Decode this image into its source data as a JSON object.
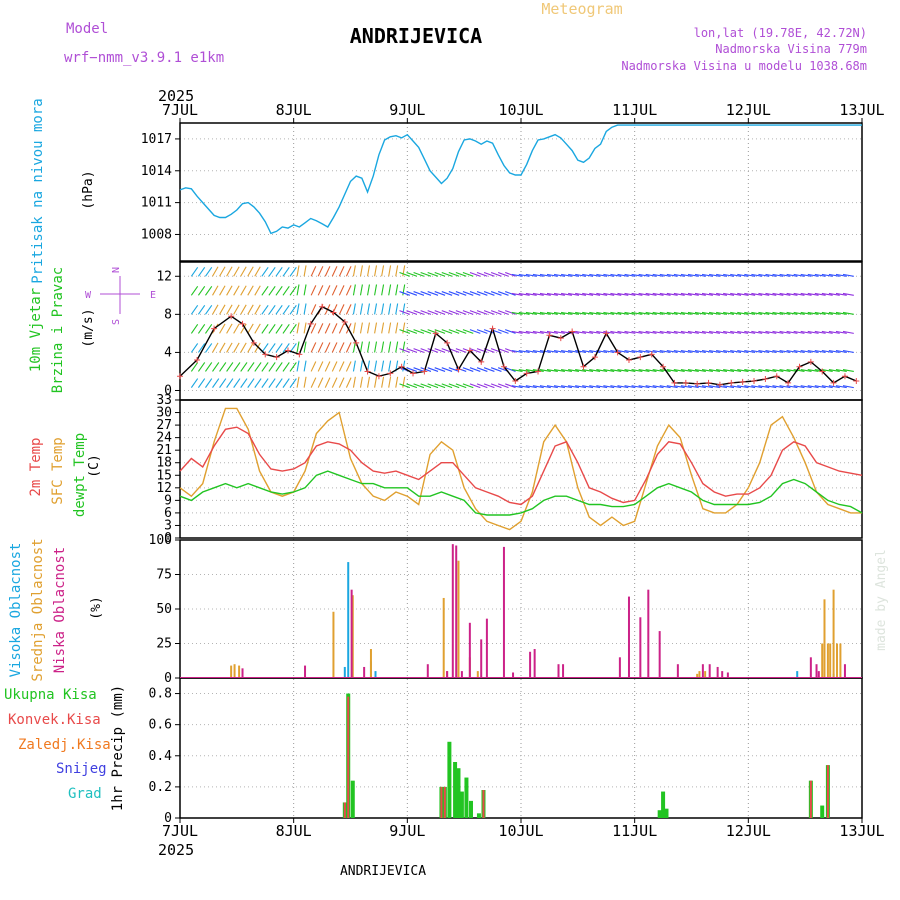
{
  "header": {
    "model_label": "Model",
    "model_name": "wrf−nmm_v3.9.1  e1km",
    "title": "ANDRIJEVICA",
    "subtitle": "Meteogram",
    "coords": "lon,lat (19.78E, 42.72N)",
    "elevation": "Nadmorska Visina 779m",
    "model_elevation": "Nadmorska Visina u modelu 1038.68m",
    "year": "2025",
    "footer_title": "ANDRIJEVICA",
    "watermark": "made by Angel"
  },
  "colors": {
    "pressure": "#1aa7e0",
    "temp2m": "#e84a4a",
    "sfc": "#e0a030",
    "dewpt": "#22c422",
    "high_cloud": "#1aa7e0",
    "mid_cloud": "#e0a030",
    "low_cloud": "#cc2288",
    "total_precip": "#22c422",
    "conv_precip": "#e84a4a",
    "frozen_precip": "#f07a20",
    "snow": "#4040e0",
    "hail": "#20c0c0",
    "wind_ylabel": "#22c422",
    "compass": "#b04fd6",
    "gust_marker": "#e84a4a"
  },
  "chart_data": [
    {
      "type": "line",
      "panel": "pressure",
      "ylabel_main": "Pritisak na nivou mora",
      "ylabel_unit": "(hPa)",
      "ylim": [
        1005.5,
        1018.5
      ],
      "yticks": [
        "1017",
        "1014",
        "1011",
        "1008"
      ],
      "x_start": "7JUL",
      "x_ticks": [
        "7JUL",
        "8JUL",
        "9JUL",
        "10JUL",
        "11JUL",
        "12JUL",
        "13JUL"
      ],
      "series": [
        {
          "x": [
            0.0,
            0.05,
            0.1,
            0.15,
            0.2,
            0.25,
            0.3,
            0.35,
            0.4,
            0.45,
            0.5,
            0.55,
            0.6,
            0.65,
            0.7,
            0.75,
            0.8,
            0.85,
            0.9,
            0.95,
            1.0,
            1.05,
            1.1,
            1.15,
            1.2,
            1.25,
            1.3,
            1.35,
            1.4,
            1.45,
            1.5,
            1.55,
            1.6,
            1.65,
            1.7,
            1.75,
            1.8,
            1.85,
            1.9,
            1.95,
            2.0,
            2.05,
            2.1,
            2.15,
            2.2,
            2.25,
            2.3,
            2.35,
            2.4,
            2.45,
            2.5,
            2.55,
            2.6,
            2.65,
            2.7,
            2.75,
            2.8,
            2.85,
            2.9,
            2.95,
            3.0,
            3.05,
            3.1,
            3.15,
            3.2,
            3.25,
            3.3,
            3.35,
            3.4,
            3.45,
            3.5,
            3.55,
            3.6,
            3.65,
            3.7,
            3.75,
            3.8,
            3.85,
            3.9,
            3.95,
            4.0,
            4.05,
            4.1,
            4.15,
            4.2,
            4.25,
            4.3,
            4.35,
            4.4,
            4.45,
            4.5,
            4.55,
            4.6,
            4.65,
            4.7,
            4.75,
            4.8,
            4.85,
            4.9,
            4.95,
            5.0,
            5.05,
            5.1,
            5.15,
            5.2,
            5.25,
            5.3,
            5.35,
            5.4,
            5.45,
            5.5,
            5.55,
            5.6,
            5.65,
            5.7,
            5.75,
            5.8,
            5.85,
            5.9,
            5.95,
            6.0
          ],
          "y": [
            1012.2,
            1012.4,
            1012.3,
            1011.6,
            1011.0,
            1010.4,
            1009.8,
            1009.6,
            1009.6,
            1009.9,
            1010.3,
            1010.9,
            1011.0,
            1010.6,
            1010.0,
            1009.2,
            1008.1,
            1008.3,
            1008.7,
            1008.6,
            1008.9,
            1008.7,
            1009.1,
            1009.5,
            1009.3,
            1009.0,
            1008.7,
            1009.6,
            1010.6,
            1011.8,
            1013.0,
            1013.5,
            1013.3,
            1012.0,
            1013.5,
            1015.5,
            1016.9,
            1017.2,
            1017.3,
            1017.1,
            1017.4,
            1016.8,
            1016.2,
            1015.1,
            1014.0,
            1013.4,
            1012.8,
            1013.3,
            1014.2,
            1015.8,
            1016.9,
            1017.0,
            1016.8,
            1016.5,
            1016.8,
            1016.6,
            1015.5,
            1014.5,
            1013.8,
            1013.6,
            1013.6,
            1014.6,
            1015.9,
            1016.9,
            1017.0,
            1017.2,
            1017.4,
            1017.1,
            1016.5,
            1015.9,
            1015.0,
            1014.8,
            1015.2,
            1016.1,
            1016.5,
            1017.7,
            1018.1,
            1018.3,
            1018.3,
            1018.3,
            1018.3,
            1018.3,
            1018.3,
            1018.3,
            1018.3,
            1018.3,
            1018.3,
            1018.3,
            1018.3,
            1018.3,
            1018.3,
            1018.3,
            1018.3,
            1018.3,
            1018.3,
            1018.3,
            1018.3,
            1018.3,
            1018.3,
            1018.3,
            1018.3,
            1018.3,
            1018.3,
            1018.3,
            1018.3,
            1018.3,
            1018.3,
            1018.3,
            1018.3,
            1018.3,
            1018.3,
            1018.3,
            1018.3,
            1018.3,
            1018.3,
            1018.3,
            1018.3,
            1018.3,
            1018.3,
            1018.3,
            1018.3
          ]
        }
      ]
    },
    {
      "type": "line",
      "panel": "wind",
      "ylabel_main": "10m Vjetar",
      "ylabel_sub": "Brzina i Pravac",
      "ylabel_unit": "(m/s)",
      "compass": {
        "n": "N",
        "s": "S",
        "w": "W",
        "e": "E"
      },
      "ylim": [
        -1,
        13.5
      ],
      "yticks": [
        "12",
        "8",
        "4",
        "0"
      ],
      "series": [
        {
          "name": "speed",
          "x": [
            0.0,
            0.15,
            0.3,
            0.45,
            0.55,
            0.65,
            0.75,
            0.85,
            0.95,
            1.05,
            1.15,
            1.25,
            1.35,
            1.45,
            1.55,
            1.65,
            1.75,
            1.85,
            1.95,
            2.05,
            2.15,
            2.25,
            2.35,
            2.45,
            2.55,
            2.65,
            2.75,
            2.85,
            2.95,
            3.05,
            3.15,
            3.25,
            3.35,
            3.45,
            3.55,
            3.65,
            3.75,
            3.85,
            3.95,
            4.05,
            4.15,
            4.25,
            4.35,
            4.45,
            4.55,
            4.65,
            4.75,
            4.85,
            4.95,
            5.05,
            5.15,
            5.25,
            5.35,
            5.45,
            5.55,
            5.65,
            5.75,
            5.85,
            5.95
          ],
          "y": [
            1.5,
            3.2,
            6.5,
            7.8,
            7.0,
            5.0,
            3.8,
            3.5,
            4.2,
            3.8,
            7.0,
            8.8,
            8.2,
            7.2,
            5.0,
            2.0,
            1.5,
            1.8,
            2.5,
            1.8,
            2.0,
            6.0,
            5.0,
            2.2,
            4.2,
            3.0,
            6.5,
            2.5,
            1.0,
            1.8,
            2.0,
            5.8,
            5.5,
            6.2,
            2.5,
            3.5,
            6.0,
            4.0,
            3.2,
            3.5,
            3.8,
            2.5,
            0.8,
            0.8,
            0.7,
            0.8,
            0.6,
            0.8,
            0.9,
            1.0,
            1.2,
            1.5,
            0.8,
            2.5,
            3.0,
            2.0,
            0.8,
            1.5,
            1.0
          ]
        }
      ]
    },
    {
      "type": "line",
      "panel": "temperature",
      "ylabel_lines": [
        "2m Temp",
        "SFC Temp",
        "dewpt Temp"
      ],
      "ylabel_unit": "(C)",
      "ylim": [
        0,
        33
      ],
      "yticks": [
        "33",
        "30",
        "27",
        "24",
        "21",
        "18",
        "15",
        "12",
        "9",
        "6",
        "3",
        "0"
      ],
      "series": [
        {
          "name": "2m Temp",
          "x": [
            0.0,
            0.1,
            0.2,
            0.3,
            0.4,
            0.5,
            0.6,
            0.7,
            0.8,
            0.9,
            1.0,
            1.1,
            1.2,
            1.3,
            1.4,
            1.5,
            1.6,
            1.7,
            1.8,
            1.9,
            2.0,
            2.1,
            2.2,
            2.3,
            2.4,
            2.5,
            2.6,
            2.7,
            2.8,
            2.9,
            3.0,
            3.1,
            3.2,
            3.3,
            3.4,
            3.5,
            3.6,
            3.7,
            3.8,
            3.9,
            4.0,
            4.1,
            4.2,
            4.3,
            4.4,
            4.5,
            4.6,
            4.7,
            4.8,
            4.9,
            5.0,
            5.1,
            5.2,
            5.3,
            5.4,
            5.5,
            5.6,
            5.7,
            5.8,
            5.9,
            6.0
          ],
          "y": [
            16,
            19,
            17,
            22,
            26,
            26.5,
            25,
            20,
            16.5,
            16,
            16.5,
            18,
            22,
            23,
            22.5,
            21,
            18,
            16,
            15.5,
            16,
            15,
            14,
            16,
            18,
            18,
            15,
            12,
            11,
            10,
            8.5,
            8,
            10,
            16,
            22,
            23,
            18,
            12,
            11,
            9.5,
            8.5,
            9,
            14,
            20,
            23,
            22.5,
            18,
            13,
            11,
            10,
            10.5,
            10.5,
            12,
            15,
            21,
            23,
            22,
            18,
            17,
            16,
            15.5,
            15
          ]
        },
        {
          "name": "SFC Temp",
          "x": [
            0.0,
            0.1,
            0.2,
            0.3,
            0.4,
            0.5,
            0.6,
            0.7,
            0.8,
            0.9,
            1.0,
            1.1,
            1.2,
            1.3,
            1.4,
            1.5,
            1.6,
            1.7,
            1.8,
            1.9,
            2.0,
            2.1,
            2.2,
            2.3,
            2.4,
            2.5,
            2.6,
            2.7,
            2.8,
            2.9,
            3.0,
            3.1,
            3.2,
            3.3,
            3.4,
            3.5,
            3.6,
            3.7,
            3.8,
            3.9,
            4.0,
            4.1,
            4.2,
            4.3,
            4.4,
            4.5,
            4.6,
            4.7,
            4.8,
            4.9,
            5.0,
            5.1,
            5.2,
            5.3,
            5.4,
            5.5,
            5.6,
            5.7,
            5.8,
            5.9,
            6.0
          ],
          "y": [
            12,
            10,
            13,
            23,
            31,
            31,
            26,
            16,
            11,
            10,
            11,
            16,
            25,
            28,
            30,
            19,
            13,
            10,
            9,
            11,
            10,
            8,
            20,
            23,
            21,
            12,
            7,
            4,
            3,
            2,
            4,
            11,
            23,
            27,
            23,
            12,
            5,
            3,
            5,
            3,
            4,
            13,
            22,
            27,
            24,
            15,
            7,
            6,
            6,
            8,
            12,
            18,
            27,
            29,
            24,
            18,
            11,
            8,
            7,
            6,
            6
          ]
        },
        {
          "name": "dewpt Temp",
          "x": [
            0.0,
            0.1,
            0.2,
            0.3,
            0.4,
            0.5,
            0.6,
            0.7,
            0.8,
            0.9,
            1.0,
            1.1,
            1.2,
            1.3,
            1.4,
            1.5,
            1.6,
            1.7,
            1.8,
            1.9,
            2.0,
            2.1,
            2.2,
            2.3,
            2.4,
            2.5,
            2.6,
            2.7,
            2.8,
            2.9,
            3.0,
            3.1,
            3.2,
            3.3,
            3.4,
            3.5,
            3.6,
            3.7,
            3.8,
            3.9,
            4.0,
            4.1,
            4.2,
            4.3,
            4.4,
            4.5,
            4.6,
            4.7,
            4.8,
            4.9,
            5.0,
            5.1,
            5.2,
            5.3,
            5.4,
            5.5,
            5.6,
            5.7,
            5.8,
            5.9,
            6.0
          ],
          "y": [
            10,
            9,
            11,
            12,
            13,
            12,
            13,
            12,
            11,
            10.5,
            11,
            12,
            15,
            16,
            15,
            14,
            13,
            13,
            12,
            12,
            12,
            10,
            10,
            11,
            10,
            9,
            6,
            5.5,
            5.5,
            5.5,
            6,
            7,
            9,
            10,
            10,
            9,
            8,
            8,
            7.5,
            7.5,
            8,
            10,
            12,
            13,
            12,
            11,
            9,
            8,
            8,
            8,
            8,
            8.5,
            10,
            13,
            14,
            13,
            11,
            9,
            8,
            7.5,
            6
          ]
        }
      ]
    },
    {
      "type": "bar",
      "panel": "clouds",
      "ylabel_lines": [
        "Visoka Oblacnost",
        "Srednja Oblacnost",
        "Niska Oblacnost"
      ],
      "ylabel_unit": "(%)",
      "ylim": [
        0,
        100
      ],
      "yticks": [
        "100",
        "75",
        "50",
        "25",
        "0"
      ],
      "series": [
        {
          "name": "Visoka Oblacnost",
          "x": [
            1.45,
            1.48,
            1.68,
            1.72,
            5.43,
            5.75
          ],
          "y": [
            8,
            84,
            12,
            5,
            5,
            3
          ]
        },
        {
          "name": "Srednja Oblacnost",
          "x": [
            0.45,
            0.48,
            0.52,
            1.35,
            1.52,
            1.68,
            2.32,
            2.35,
            2.45,
            2.55,
            2.62,
            4.55,
            4.57,
            4.62,
            5.65,
            5.67,
            5.7,
            5.72,
            5.75,
            5.78,
            5.81
          ],
          "y": [
            9,
            10,
            9,
            48,
            60,
            21,
            58,
            5,
            85,
            15,
            5,
            3,
            5,
            5,
            25,
            57,
            25,
            25,
            64,
            25,
            25
          ]
        },
        {
          "name": "Niska Oblacnost",
          "x": [
            0.55,
            1.1,
            1.51,
            1.62,
            2.18,
            2.35,
            2.4,
            2.43,
            2.48,
            2.55,
            2.65,
            2.7,
            2.85,
            2.93,
            3.08,
            3.12,
            3.33,
            3.37,
            3.87,
            3.95,
            4.05,
            4.12,
            4.22,
            4.38,
            4.6,
            4.66,
            4.73,
            4.77,
            4.82,
            5.55,
            5.6,
            5.62,
            5.85
          ],
          "y": [
            7,
            9,
            64,
            8,
            10,
            5,
            97,
            96,
            5,
            40,
            28,
            43,
            95,
            4,
            19,
            21,
            10,
            10,
            15,
            59,
            44,
            64,
            34,
            10,
            10,
            10,
            8,
            5,
            4,
            15,
            10,
            5,
            10
          ]
        }
      ]
    },
    {
      "type": "bar",
      "panel": "precip",
      "ylabel_main": "1hr Precip (mm)",
      "legend": [
        "Ukupna Kisa",
        "Konvek.Kisa",
        "Zaledj.Kisa",
        "Snijeg",
        "Grad"
      ],
      "ylim": [
        0,
        0.9
      ],
      "yticks": [
        "0.8",
        "0.6",
        "0.4",
        "0.2",
        "0"
      ],
      "series": [
        {
          "name": "Ukupna Kisa",
          "x": [
            1.45,
            1.48,
            1.52,
            2.3,
            2.33,
            2.37,
            2.42,
            2.45,
            2.48,
            2.52,
            2.56,
            2.63,
            2.67,
            4.22,
            4.25,
            4.28,
            5.55,
            5.65,
            5.7
          ],
          "y": [
            0.1,
            0.8,
            0.24,
            0.2,
            0.2,
            0.49,
            0.36,
            0.32,
            0.17,
            0.26,
            0.11,
            0.03,
            0.18,
            0.05,
            0.17,
            0.06,
            0.24,
            0.08,
            0.34
          ]
        },
        {
          "name": "Konvek.Kisa",
          "x": [
            1.45,
            1.48,
            2.3,
            2.33,
            2.67,
            5.55,
            5.7
          ],
          "y": [
            0.1,
            0.78,
            0.2,
            0.2,
            0.18,
            0.24,
            0.34
          ]
        }
      ]
    }
  ]
}
